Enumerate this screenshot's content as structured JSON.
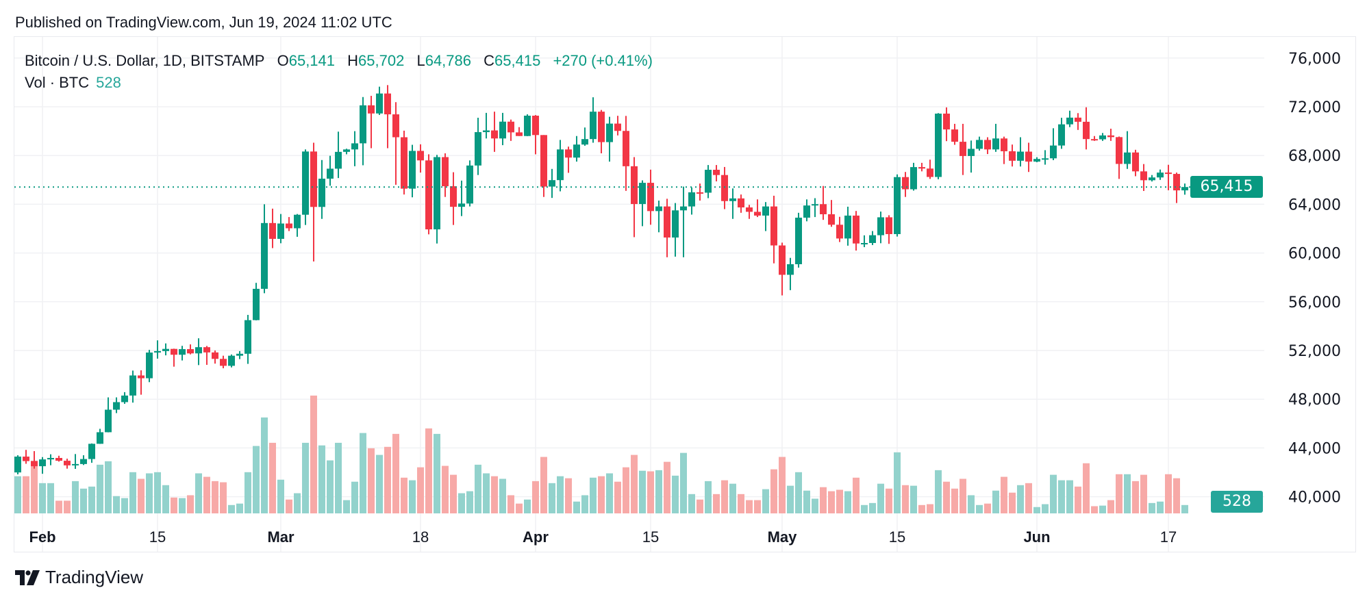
{
  "header": {
    "published": "Published on TradingView.com, Jun 19, 2024 11:02 UTC"
  },
  "legend": {
    "symbol": "Bitcoin / U.S. Dollar, 1D, BITSTAMP",
    "o_label": "O",
    "o_value": "65,141",
    "h_label": "H",
    "h_value": "65,702",
    "l_label": "L",
    "l_value": "64,786",
    "c_label": "C",
    "c_value": "65,415",
    "change": "+270 (+0.41%)",
    "vol_label": "Vol · BTC",
    "vol_value": "528"
  },
  "last_price_tag": "65,415",
  "last_volume_tag": "528",
  "branding": {
    "logo_text": "TradingView"
  },
  "colors": {
    "up": "#089981",
    "down": "#f23645",
    "up_volume": "#92d2cc",
    "down_volume": "#f7a9a7",
    "last_price": "#089981",
    "volume_tag": "#26a69a"
  },
  "chart_data": {
    "type": "candlestick",
    "ylim": [
      38000,
      78000
    ],
    "y_ticks": [
      {
        "value": 76000,
        "label": "76,000"
      },
      {
        "value": 72000,
        "label": "72,000"
      },
      {
        "value": 68000,
        "label": "68,000"
      },
      {
        "value": 64000,
        "label": "64,000"
      },
      {
        "value": 60000,
        "label": "60,000"
      },
      {
        "value": 56000,
        "label": "56,000"
      },
      {
        "value": 52000,
        "label": "52,000"
      },
      {
        "value": 48000,
        "label": "48,000"
      },
      {
        "value": 44000,
        "label": "44,000"
      },
      {
        "value": 40000,
        "label": "40,000"
      }
    ],
    "x_ticks": [
      {
        "date": "2024-02-01",
        "label": "Feb",
        "bold": true
      },
      {
        "date": "2024-02-15",
        "label": "15"
      },
      {
        "date": "2024-03-01",
        "label": "Mar",
        "bold": true
      },
      {
        "date": "2024-03-18",
        "label": "18"
      },
      {
        "date": "2024-04-01",
        "label": "Apr",
        "bold": true
      },
      {
        "date": "2024-04-15",
        "label": "15"
      },
      {
        "date": "2024-05-01",
        "label": "May",
        "bold": true
      },
      {
        "date": "2024-05-15",
        "label": "15"
      },
      {
        "date": "2024-06-01",
        "label": "Jun",
        "bold": true
      },
      {
        "date": "2024-06-17",
        "label": "17"
      }
    ],
    "grid": true,
    "last_price": 65415,
    "columns": [
      "date",
      "open",
      "high",
      "low",
      "close",
      "volume"
    ],
    "candles": [
      [
        "2024-01-29",
        41990,
        43400,
        41830,
        43290,
        2348
      ],
      [
        "2024-01-30",
        43290,
        43840,
        42700,
        42920,
        2348
      ],
      [
        "2024-01-31",
        42920,
        43740,
        42300,
        42500,
        3331
      ],
      [
        "2024-02-01",
        42500,
        43250,
        41880,
        43060,
        1911
      ],
      [
        "2024-02-02",
        43060,
        43480,
        42580,
        43180,
        1911
      ],
      [
        "2024-02-03",
        43180,
        43360,
        42880,
        42950,
        801
      ],
      [
        "2024-02-04",
        42950,
        43120,
        42300,
        42570,
        801
      ],
      [
        "2024-02-05",
        42570,
        43500,
        42280,
        42680,
        2038
      ],
      [
        "2024-02-06",
        42680,
        43400,
        42600,
        43090,
        1565
      ],
      [
        "2024-02-07",
        43090,
        44370,
        42780,
        44340,
        1693
      ],
      [
        "2024-02-08",
        44340,
        45570,
        44330,
        45290,
        3076
      ],
      [
        "2024-02-09",
        45290,
        48150,
        45280,
        47140,
        3294
      ],
      [
        "2024-02-10",
        47140,
        48150,
        46860,
        47760,
        1092
      ],
      [
        "2024-02-11",
        47760,
        48580,
        47620,
        48300,
        965
      ],
      [
        "2024-02-12",
        48300,
        50350,
        47720,
        49950,
        2603
      ],
      [
        "2024-02-13",
        49950,
        50370,
        48370,
        49720,
        2184
      ],
      [
        "2024-02-14",
        49720,
        52050,
        49400,
        51830,
        2530
      ],
      [
        "2024-02-15",
        51830,
        52830,
        51330,
        51950,
        2603
      ],
      [
        "2024-02-16",
        51950,
        52580,
        51600,
        52130,
        1784
      ],
      [
        "2024-02-17",
        52130,
        52150,
        50670,
        51650,
        1001
      ],
      [
        "2024-02-18",
        51650,
        52380,
        51180,
        52110,
        965
      ],
      [
        "2024-02-19",
        52110,
        52500,
        51680,
        51760,
        1147
      ],
      [
        "2024-02-20",
        51760,
        53000,
        50800,
        52270,
        2530
      ],
      [
        "2024-02-21",
        52270,
        52370,
        50820,
        51840,
        2311
      ],
      [
        "2024-02-22",
        51840,
        52000,
        50920,
        51310,
        2038
      ],
      [
        "2024-02-23",
        51310,
        51570,
        50540,
        50740,
        1966
      ],
      [
        "2024-02-24",
        50740,
        51670,
        50610,
        51570,
        528
      ],
      [
        "2024-02-25",
        51570,
        51950,
        51290,
        51730,
        619
      ],
      [
        "2024-02-26",
        51730,
        54920,
        50900,
        54490,
        2603
      ],
      [
        "2024-02-27",
        54490,
        57550,
        54470,
        57060,
        4259
      ],
      [
        "2024-02-28",
        57060,
        64000,
        56700,
        62460,
        6061
      ],
      [
        "2024-02-29",
        62460,
        63640,
        60400,
        61160,
        4459
      ],
      [
        "2024-03-01",
        61160,
        63200,
        60800,
        62420,
        2129
      ],
      [
        "2024-03-02",
        62420,
        62950,
        61800,
        62030,
        874
      ],
      [
        "2024-03-03",
        62030,
        63200,
        61330,
        63140,
        1274
      ],
      [
        "2024-03-04",
        63140,
        68500,
        62300,
        68330,
        4459
      ],
      [
        "2024-03-05",
        68330,
        69050,
        59300,
        63780,
        7444
      ],
      [
        "2024-03-06",
        63780,
        67630,
        62800,
        66100,
        4295
      ],
      [
        "2024-03-07",
        66100,
        67980,
        65520,
        66920,
        3349
      ],
      [
        "2024-03-08",
        66920,
        69960,
        66150,
        68300,
        4459
      ],
      [
        "2024-03-09",
        68300,
        68560,
        68100,
        68500,
        837
      ],
      [
        "2024-03-10",
        68500,
        70000,
        67120,
        69000,
        2002
      ],
      [
        "2024-03-11",
        69000,
        72800,
        67200,
        72120,
        5078
      ],
      [
        "2024-03-12",
        72120,
        72900,
        68600,
        71450,
        4113
      ],
      [
        "2024-03-13",
        71450,
        73650,
        71330,
        73090,
        3695
      ],
      [
        "2024-03-14",
        73090,
        73780,
        68600,
        71380,
        4204
      ],
      [
        "2024-03-15",
        71380,
        72380,
        65600,
        69500,
        5023
      ],
      [
        "2024-03-16",
        69500,
        70040,
        64800,
        65280,
        2257
      ],
      [
        "2024-03-17",
        65280,
        68880,
        64570,
        68380,
        2093
      ],
      [
        "2024-03-18",
        68380,
        68920,
        66600,
        67600,
        2912
      ],
      [
        "2024-03-19",
        67600,
        68100,
        61530,
        61940,
        5369
      ],
      [
        "2024-03-20",
        61940,
        68050,
        60780,
        67870,
        5023
      ],
      [
        "2024-03-21",
        67870,
        68180,
        64600,
        65480,
        3003
      ],
      [
        "2024-03-22",
        65480,
        66630,
        62300,
        63790,
        2439
      ],
      [
        "2024-03-23",
        63790,
        65940,
        63030,
        64060,
        1274
      ],
      [
        "2024-03-24",
        64060,
        67600,
        63820,
        67180,
        1401
      ],
      [
        "2024-03-25",
        67180,
        71100,
        66400,
        69920,
        3076
      ],
      [
        "2024-03-26",
        69920,
        71500,
        69400,
        70060,
        2530
      ],
      [
        "2024-03-27",
        70060,
        71600,
        68300,
        69400,
        2348
      ],
      [
        "2024-03-28",
        69400,
        71500,
        68850,
        70780,
        2184
      ],
      [
        "2024-03-29",
        70780,
        70950,
        69200,
        69900,
        1147
      ],
      [
        "2024-03-30",
        69900,
        70330,
        69600,
        69600,
        619
      ],
      [
        "2024-03-31",
        69600,
        71380,
        69590,
        71270,
        874
      ],
      [
        "2024-04-01",
        71270,
        71320,
        68100,
        69680,
        2038
      ],
      [
        "2024-04-02",
        69680,
        69680,
        64600,
        65450,
        3567
      ],
      [
        "2024-04-03",
        65450,
        66900,
        64520,
        65980,
        1911
      ],
      [
        "2024-04-04",
        65980,
        69280,
        65060,
        68500,
        2348
      ],
      [
        "2024-04-05",
        68500,
        68730,
        66580,
        67830,
        2220
      ],
      [
        "2024-04-06",
        67830,
        69600,
        67500,
        68900,
        746
      ],
      [
        "2024-04-07",
        68900,
        70300,
        68800,
        69350,
        1147
      ],
      [
        "2024-04-08",
        69350,
        72780,
        69050,
        71600,
        2257
      ],
      [
        "2024-04-09",
        71600,
        71740,
        68180,
        69100,
        2348
      ],
      [
        "2024-04-10",
        69100,
        71180,
        67500,
        70620,
        2530
      ],
      [
        "2024-04-11",
        70620,
        71260,
        69650,
        70020,
        2002
      ],
      [
        "2024-04-12",
        70020,
        71250,
        65100,
        67120,
        2912
      ],
      [
        "2024-04-13",
        67120,
        67870,
        61300,
        64020,
        3695
      ],
      [
        "2024-04-14",
        64020,
        65960,
        62200,
        65760,
        2694
      ],
      [
        "2024-04-15",
        65760,
        66840,
        62320,
        63440,
        2657
      ],
      [
        "2024-04-16",
        63440,
        64300,
        61700,
        63820,
        2730
      ],
      [
        "2024-04-17",
        63820,
        64450,
        59650,
        61270,
        3258
      ],
      [
        "2024-04-18",
        61270,
        64100,
        59700,
        63500,
        2384
      ],
      [
        "2024-04-19",
        63500,
        65450,
        59650,
        63820,
        3822
      ],
      [
        "2024-04-20",
        63820,
        65380,
        63150,
        64980,
        1219
      ],
      [
        "2024-04-21",
        64980,
        65700,
        64300,
        64950,
        874
      ],
      [
        "2024-04-22",
        64950,
        67220,
        64500,
        66830,
        2038
      ],
      [
        "2024-04-23",
        66830,
        67220,
        65880,
        66400,
        1219
      ],
      [
        "2024-04-24",
        66400,
        67060,
        63600,
        64260,
        2093
      ],
      [
        "2024-04-25",
        64260,
        65300,
        62800,
        64480,
        1875
      ],
      [
        "2024-04-26",
        64480,
        64800,
        63300,
        63740,
        1219
      ],
      [
        "2024-04-27",
        63740,
        63950,
        62800,
        63380,
        837
      ],
      [
        "2024-04-28",
        63380,
        64400,
        62950,
        63070,
        837
      ],
      [
        "2024-04-29",
        63070,
        64180,
        61800,
        63820,
        1529
      ],
      [
        "2024-04-30",
        63820,
        64700,
        59150,
        60620,
        2785
      ],
      [
        "2024-05-01",
        60620,
        60850,
        56520,
        58210,
        3567
      ],
      [
        "2024-05-02",
        58210,
        59600,
        56950,
        59080,
        1747
      ],
      [
        "2024-05-03",
        59080,
        63300,
        58800,
        62900,
        2603
      ],
      [
        "2024-05-04",
        62900,
        64400,
        62600,
        63900,
        1438
      ],
      [
        "2024-05-05",
        63900,
        64500,
        62950,
        64010,
        928
      ],
      [
        "2024-05-06",
        64010,
        65500,
        62720,
        63180,
        1656
      ],
      [
        "2024-05-07",
        63180,
        64350,
        62150,
        62320,
        1401
      ],
      [
        "2024-05-08",
        62320,
        62970,
        60900,
        61190,
        1492
      ],
      [
        "2024-05-09",
        61190,
        63800,
        60600,
        63070,
        1401
      ],
      [
        "2024-05-10",
        63070,
        63450,
        60200,
        60780,
        2257
      ],
      [
        "2024-05-11",
        60780,
        61450,
        60480,
        60820,
        528
      ],
      [
        "2024-05-12",
        60820,
        61800,
        60650,
        61460,
        655
      ],
      [
        "2024-05-13",
        61460,
        63400,
        60800,
        62930,
        1875
      ],
      [
        "2024-05-14",
        62930,
        63100,
        60750,
        61550,
        1565
      ],
      [
        "2024-05-15",
        61550,
        66450,
        61350,
        66230,
        3858
      ],
      [
        "2024-05-16",
        66230,
        66650,
        64600,
        65230,
        1784
      ],
      [
        "2024-05-17",
        65230,
        67400,
        65120,
        67050,
        1747
      ],
      [
        "2024-05-18",
        67050,
        67400,
        66700,
        66930,
        528
      ],
      [
        "2024-05-19",
        66930,
        67660,
        66080,
        66240,
        582
      ],
      [
        "2024-05-20",
        66240,
        71480,
        66050,
        71440,
        2730
      ],
      [
        "2024-05-21",
        71440,
        71950,
        69180,
        70140,
        2002
      ],
      [
        "2024-05-22",
        70140,
        70600,
        68880,
        69130,
        1565
      ],
      [
        "2024-05-23",
        69130,
        70600,
        66400,
        67960,
        2184
      ],
      [
        "2024-05-24",
        67960,
        69230,
        66600,
        68550,
        1147
      ],
      [
        "2024-05-25",
        68550,
        69550,
        68400,
        69280,
        528
      ],
      [
        "2024-05-26",
        69280,
        69500,
        68120,
        68500,
        619
      ],
      [
        "2024-05-27",
        68500,
        70600,
        68300,
        69400,
        1438
      ],
      [
        "2024-05-28",
        69400,
        69550,
        67300,
        68350,
        2311
      ],
      [
        "2024-05-29",
        68350,
        68900,
        67100,
        67570,
        1310
      ],
      [
        "2024-05-30",
        67570,
        69500,
        67100,
        68320,
        1784
      ],
      [
        "2024-05-31",
        68320,
        69050,
        66650,
        67500,
        1911
      ],
      [
        "2024-06-01",
        67500,
        67860,
        67450,
        67720,
        400
      ],
      [
        "2024-06-02",
        67720,
        68440,
        67250,
        67770,
        582
      ],
      [
        "2024-06-03",
        67770,
        70240,
        67620,
        68820,
        2439
      ],
      [
        "2024-06-04",
        68820,
        71100,
        68550,
        70560,
        2093
      ],
      [
        "2024-06-05",
        70560,
        71680,
        70330,
        71110,
        2093
      ],
      [
        "2024-06-06",
        71110,
        71480,
        70100,
        70770,
        1693
      ],
      [
        "2024-06-07",
        70770,
        71960,
        68500,
        69350,
        3167
      ],
      [
        "2024-06-08",
        69350,
        69600,
        69200,
        69330,
        455
      ],
      [
        "2024-06-09",
        69330,
        69850,
        69200,
        69650,
        491
      ],
      [
        "2024-06-10",
        69650,
        70200,
        69200,
        69510,
        837
      ],
      [
        "2024-06-11",
        69510,
        69560,
        66080,
        67310,
        2475
      ],
      [
        "2024-06-12",
        67310,
        70000,
        66900,
        68250,
        2475
      ],
      [
        "2024-06-13",
        68250,
        68470,
        66300,
        66700,
        2038
      ],
      [
        "2024-06-14",
        66700,
        67300,
        65090,
        65970,
        2439
      ],
      [
        "2024-06-15",
        65970,
        66400,
        65870,
        66200,
        655
      ],
      [
        "2024-06-16",
        66200,
        66850,
        66000,
        66600,
        746
      ],
      [
        "2024-06-17",
        66600,
        67240,
        65150,
        66490,
        2475
      ],
      [
        "2024-06-18",
        66490,
        66600,
        64100,
        65140,
        2220
      ],
      [
        "2024-06-19",
        65141,
        65702,
        64786,
        65415,
        528
      ]
    ]
  }
}
